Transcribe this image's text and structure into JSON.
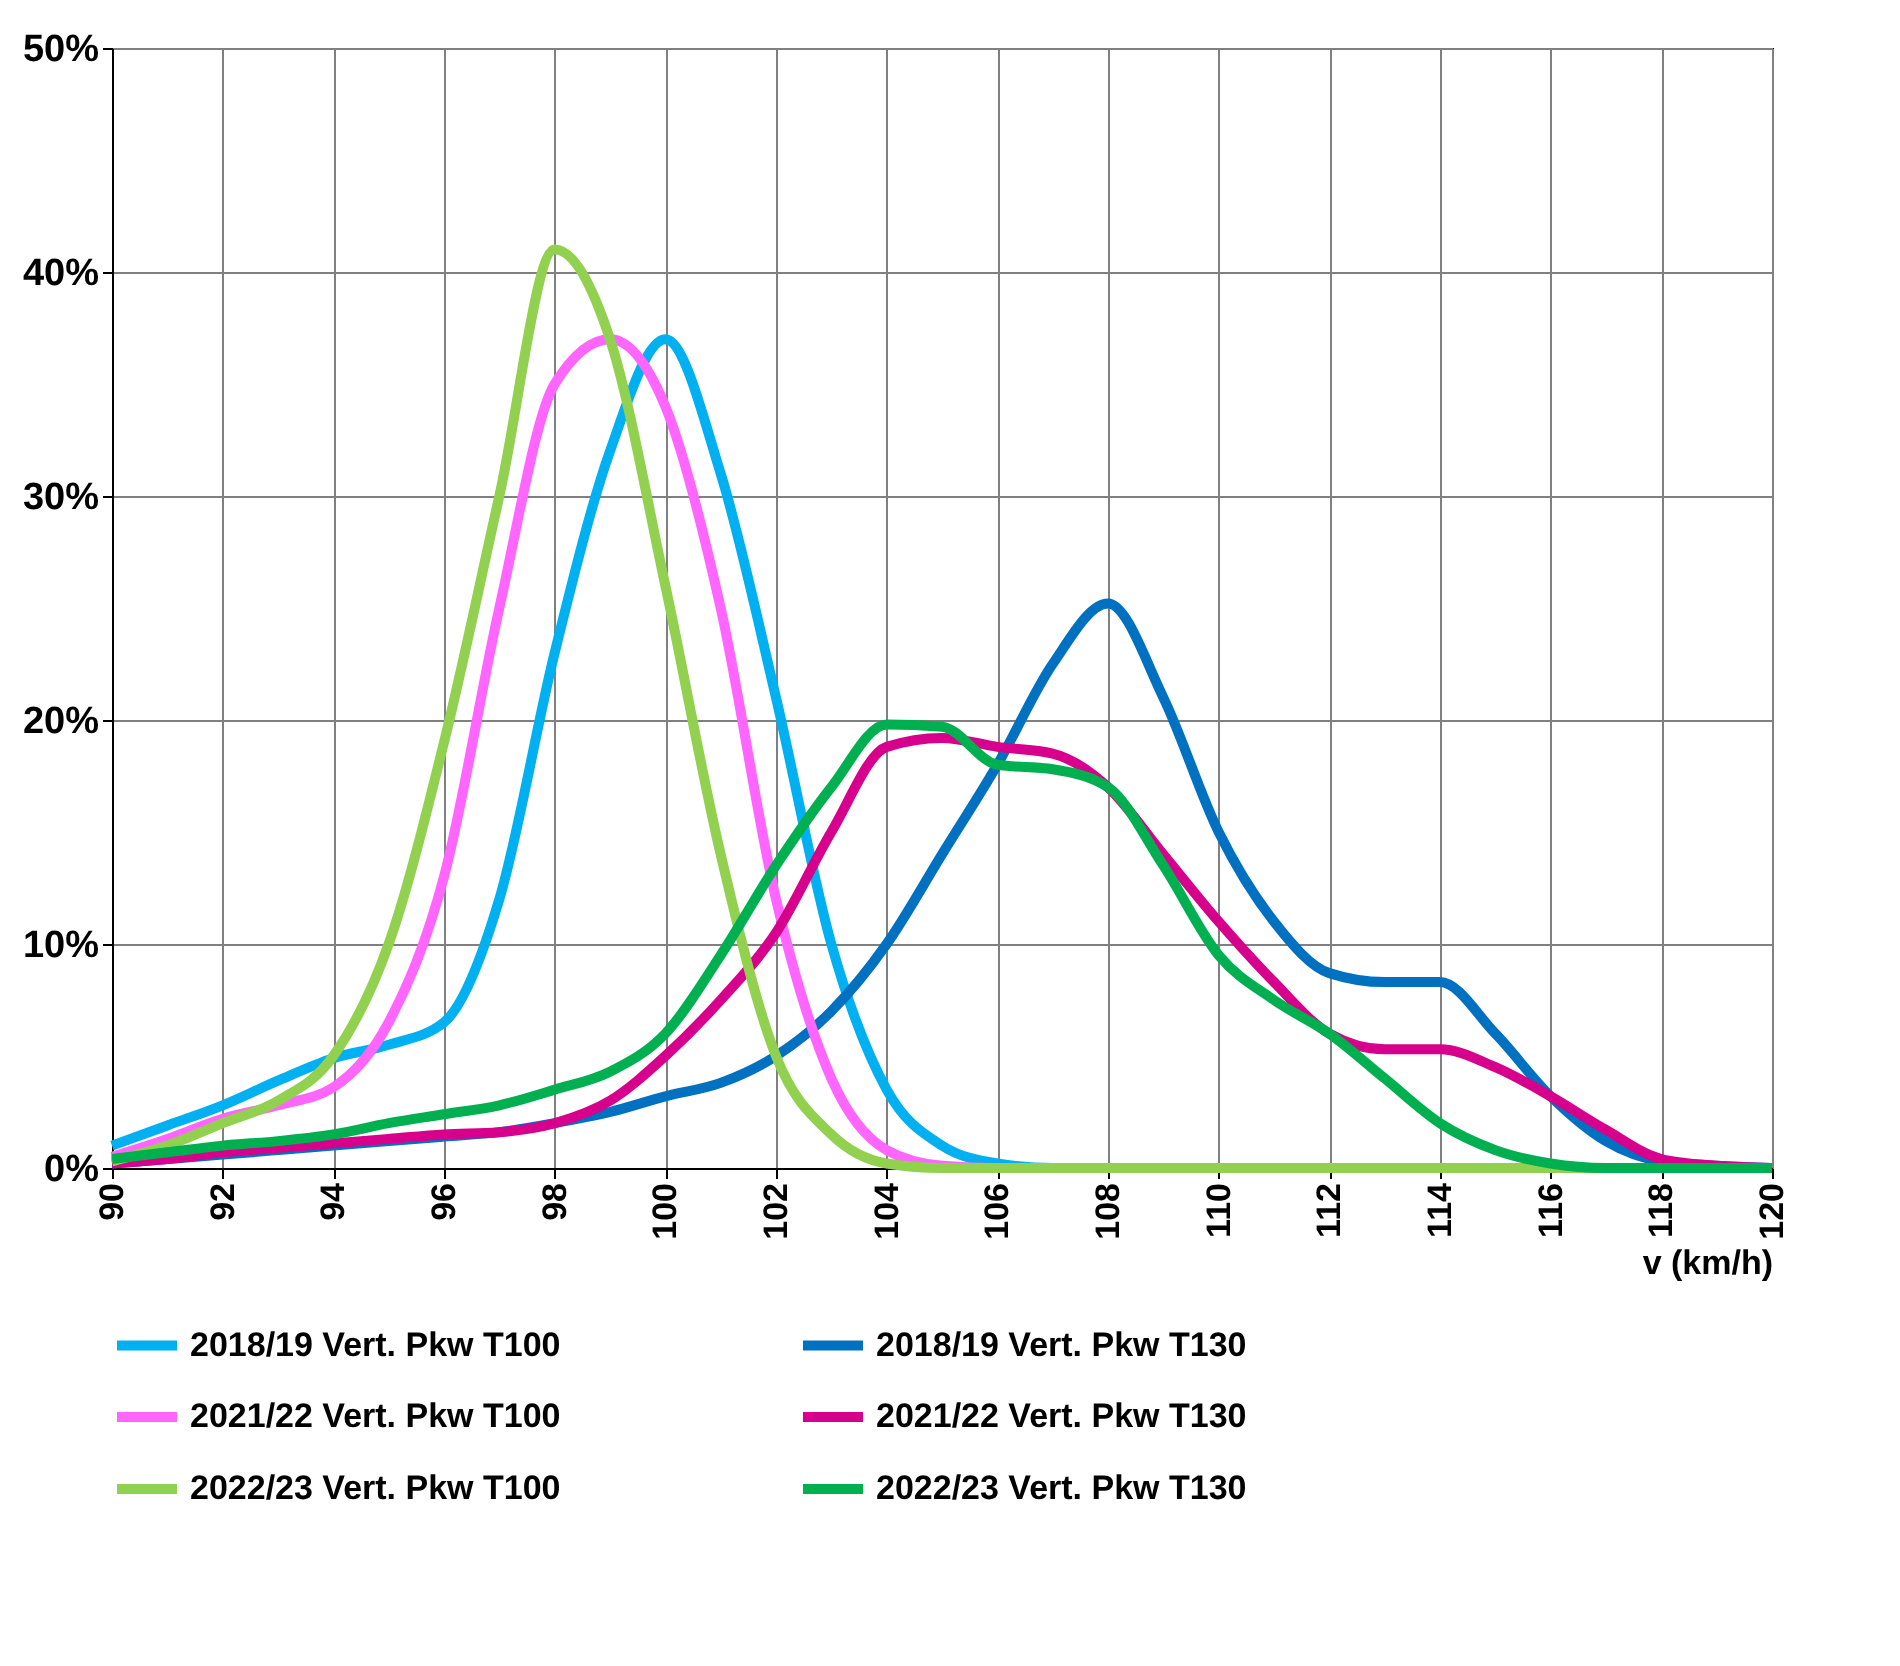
{
  "chart_data": {
    "type": "line",
    "xlabel": "v (km/h)",
    "x": [
      90,
      91,
      92,
      93,
      94,
      95,
      96,
      97,
      98,
      99,
      100,
      101,
      102,
      103,
      104,
      105,
      106,
      107,
      108,
      109,
      110,
      111,
      112,
      113,
      114,
      115,
      116,
      117,
      118,
      119,
      120
    ],
    "series": [
      {
        "name": "2018/19 Vert. Pkw T100",
        "color": "#00b0f0",
        "values": [
          1,
          1.9,
          2.8,
          3.9,
          4.9,
          5.5,
          6.5,
          12,
          23,
          32,
          37,
          31,
          21,
          10,
          3.5,
          1,
          0.2,
          0,
          0,
          null,
          null,
          null,
          null,
          null,
          null,
          null,
          null,
          null,
          null,
          null,
          null
        ]
      },
      {
        "name": "2018/19 Vert. Pkw T130",
        "color": "#0070c0",
        "values": [
          0.2,
          0.4,
          0.6,
          0.8,
          1,
          1.2,
          1.4,
          1.6,
          2,
          2.5,
          3.2,
          3.8,
          5,
          7,
          10,
          14,
          18,
          22.5,
          25.2,
          21,
          15,
          11,
          8.7,
          8.3,
          8.3,
          6,
          3.2,
          1.2,
          0.3,
          0.1,
          0
        ]
      },
      {
        "name": "2021/22 Vert. Pkw T100",
        "color": "#ff66ff",
        "values": [
          0.5,
          1.3,
          2.2,
          2.8,
          3.6,
          6.5,
          13,
          25,
          35,
          37,
          34,
          25,
          12,
          4,
          0.8,
          0.1,
          0,
          0,
          null,
          null,
          null,
          null,
          null,
          null,
          null,
          null,
          null,
          null,
          null,
          null,
          null
        ]
      },
      {
        "name": "2021/22 Vert. Pkw T130",
        "color": "#d6008c",
        "values": [
          0.2,
          0.4,
          0.7,
          0.9,
          1.1,
          1.3,
          1.5,
          1.6,
          2,
          3,
          5,
          7.5,
          10.5,
          15,
          18.8,
          19.2,
          18.8,
          18.5,
          17,
          14,
          11,
          8.3,
          6,
          5.3,
          5.3,
          4.5,
          3.2,
          1.7,
          0.4,
          0.1,
          0
        ]
      },
      {
        "name": "2022/23 Vert. Pkw T100",
        "color": "#92d050",
        "values": [
          0.3,
          1,
          2,
          3,
          5,
          10,
          19,
          30,
          41,
          37,
          26,
          14,
          5,
          1.5,
          0.2,
          0,
          0,
          0,
          0,
          0,
          0,
          0,
          0,
          0,
          0,
          0,
          0,
          0,
          0,
          null,
          null
        ]
      },
      {
        "name": "2022/23 Vert. Pkw T130",
        "color": "#00b050",
        "values": [
          0.4,
          0.7,
          1,
          1.2,
          1.5,
          2,
          2.4,
          2.8,
          3.5,
          4.3,
          6,
          9.5,
          13.5,
          17,
          19.8,
          19.7,
          18,
          17.8,
          17,
          13.5,
          9.5,
          7.5,
          6,
          4,
          2,
          0.8,
          0.2,
          0,
          0,
          0,
          0
        ]
      }
    ],
    "xlim": [
      90,
      120
    ],
    "xticks": [
      90,
      92,
      94,
      96,
      98,
      100,
      102,
      104,
      106,
      108,
      110,
      112,
      114,
      116,
      118,
      120
    ],
    "ylim": [
      0,
      50
    ],
    "yticks": [
      {
        "value": 0,
        "label": "0%"
      },
      {
        "value": 10,
        "label": "10%"
      },
      {
        "value": 20,
        "label": "20%"
      },
      {
        "value": 30,
        "label": "30%"
      },
      {
        "value": 40,
        "label": "40%"
      },
      {
        "value": 50,
        "label": "50%"
      }
    ],
    "grid": true,
    "legend": "bottom",
    "marker": "none",
    "line_style": "solid"
  }
}
